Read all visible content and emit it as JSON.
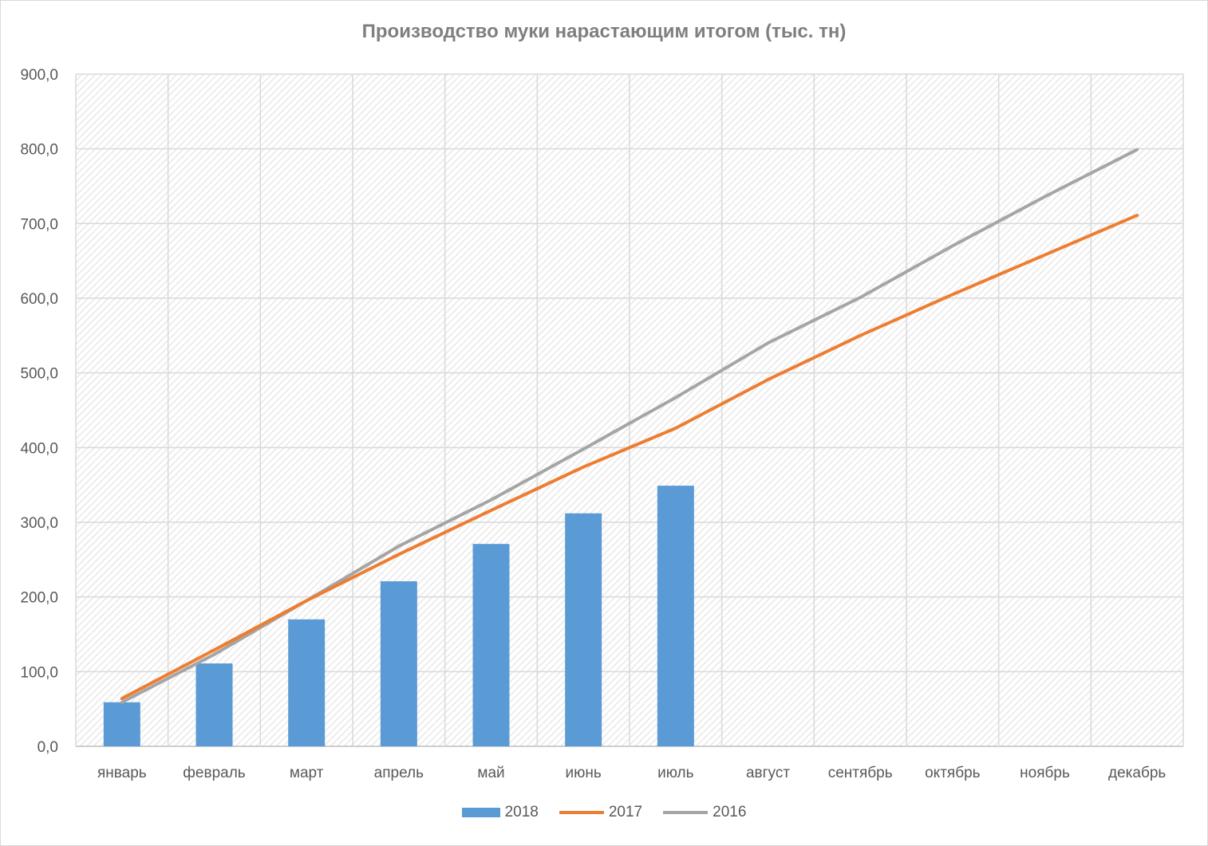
{
  "chart_data": {
    "type": "bar+line",
    "title": "Производство муки нарастающим итогом (тыс. тн)",
    "categories": [
      "январь",
      "февраль",
      "март",
      "апрель",
      "май",
      "июнь",
      "июль",
      "август",
      "сентябрь",
      "октябрь",
      "ноябрь",
      "декабрь"
    ],
    "ylim": [
      0,
      900
    ],
    "yticks": [
      "0,0",
      "100,0",
      "200,0",
      "300,0",
      "400,0",
      "500,0",
      "600,0",
      "700,0",
      "800,0",
      "900,0"
    ],
    "grid": true,
    "legend_position": "bottom",
    "series": [
      {
        "name": "2018",
        "type": "bar",
        "color": "#5b9bd5",
        "values": [
          59,
          111,
          170,
          221,
          271,
          312,
          349,
          null,
          null,
          null,
          null,
          null
        ]
      },
      {
        "name": "2017",
        "type": "line",
        "color": "#ed7d31",
        "values": [
          64,
          129,
          195,
          257,
          316,
          374,
          426,
          491,
          550,
          605,
          658,
          711
        ]
      },
      {
        "name": "2016",
        "type": "line",
        "color": "#a5a5a5",
        "values": [
          59,
          123,
          195,
          268,
          330,
          398,
          467,
          540,
          601,
          670,
          736,
          799
        ]
      }
    ]
  }
}
